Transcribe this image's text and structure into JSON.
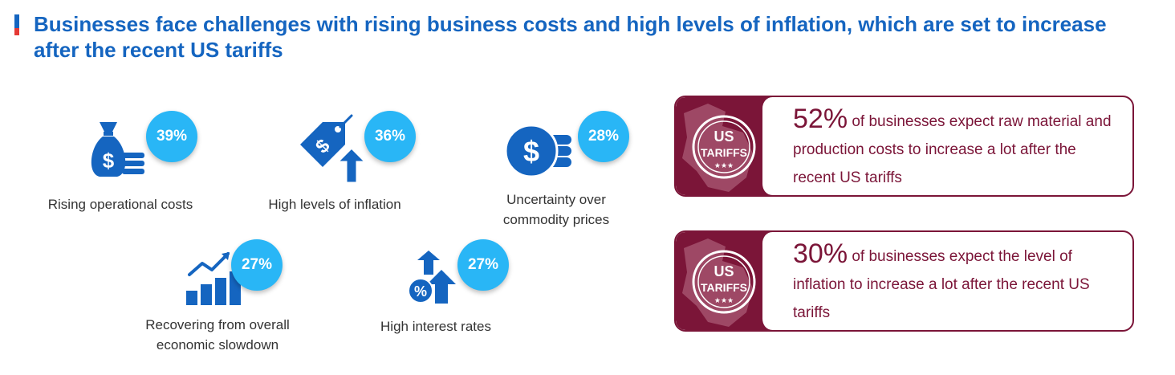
{
  "title": "Businesses face challenges with rising business costs and high levels of inflation, which are set to increase after the recent US tariffs",
  "colors": {
    "primary_blue": "#1565c0",
    "badge_blue": "#29b6f6",
    "accent_red": "#e53935",
    "maroon": "#7b1538"
  },
  "stats": [
    {
      "percent": "39%",
      "label": "Rising operational costs",
      "icon": "money-bag-coins-icon"
    },
    {
      "percent": "36%",
      "label": "High levels of inflation",
      "icon": "price-tag-arrow-up-icon"
    },
    {
      "percent": "28%",
      "label": "Uncertainty over commodity prices",
      "icon": "dollar-coin-stack-icon"
    },
    {
      "percent": "27%",
      "label": "Recovering from overall economic slowdown",
      "icon": "growth-bar-chart-icon"
    },
    {
      "percent": "27%",
      "label": "High interest rates",
      "icon": "percent-arrows-up-icon"
    }
  ],
  "callouts": [
    {
      "percent": "52%",
      "text": "of businesses expect raw material and production costs to increase a lot after the recent US tariffs",
      "stamp_line1": "US",
      "stamp_line2": "TARIFFS",
      "stamp_stars": "★★★"
    },
    {
      "percent": "30%",
      "text": "of businesses expect the level of inflation to increase a lot after the recent US tariffs",
      "stamp_line1": "US",
      "stamp_line2": "TARIFFS",
      "stamp_stars": "★★★"
    }
  ]
}
